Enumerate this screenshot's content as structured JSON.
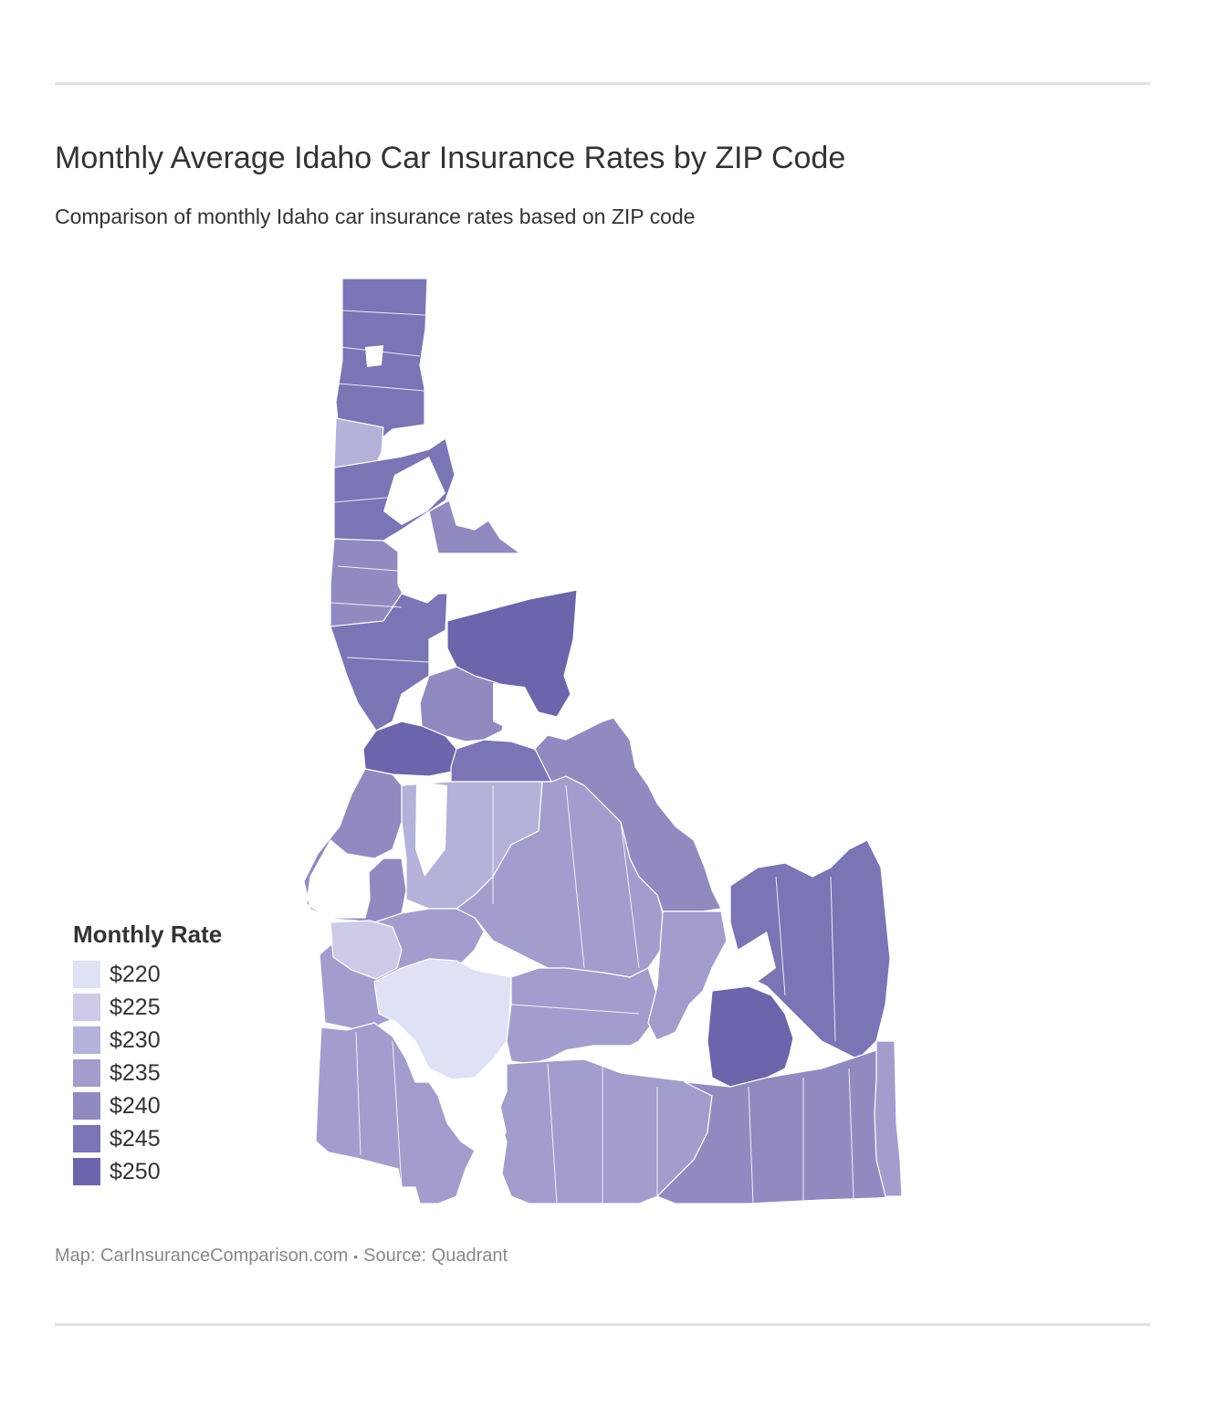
{
  "header": {
    "title": "Monthly Average Idaho Car Insurance Rates by ZIP Code",
    "subtitle": "Comparison of monthly Idaho car insurance rates based on ZIP code"
  },
  "legend": {
    "title": "Monthly Rate",
    "items": [
      {
        "label": "$220",
        "color": "#dfe1f5"
      },
      {
        "label": "$225",
        "color": "#cbcbe8"
      },
      {
        "label": "$230",
        "color": "#b3b2d9"
      },
      {
        "label": "$235",
        "color": "#a19ecd"
      },
      {
        "label": "$240",
        "color": "#8f8bc0"
      },
      {
        "label": "$245",
        "color": "#7a75b5"
      },
      {
        "label": "$250",
        "color": "#6b65ab"
      }
    ]
  },
  "footer": {
    "map_credit": "Map: CarInsuranceComparison.com",
    "separator": "•",
    "source": "Source: Quadrant"
  }
}
